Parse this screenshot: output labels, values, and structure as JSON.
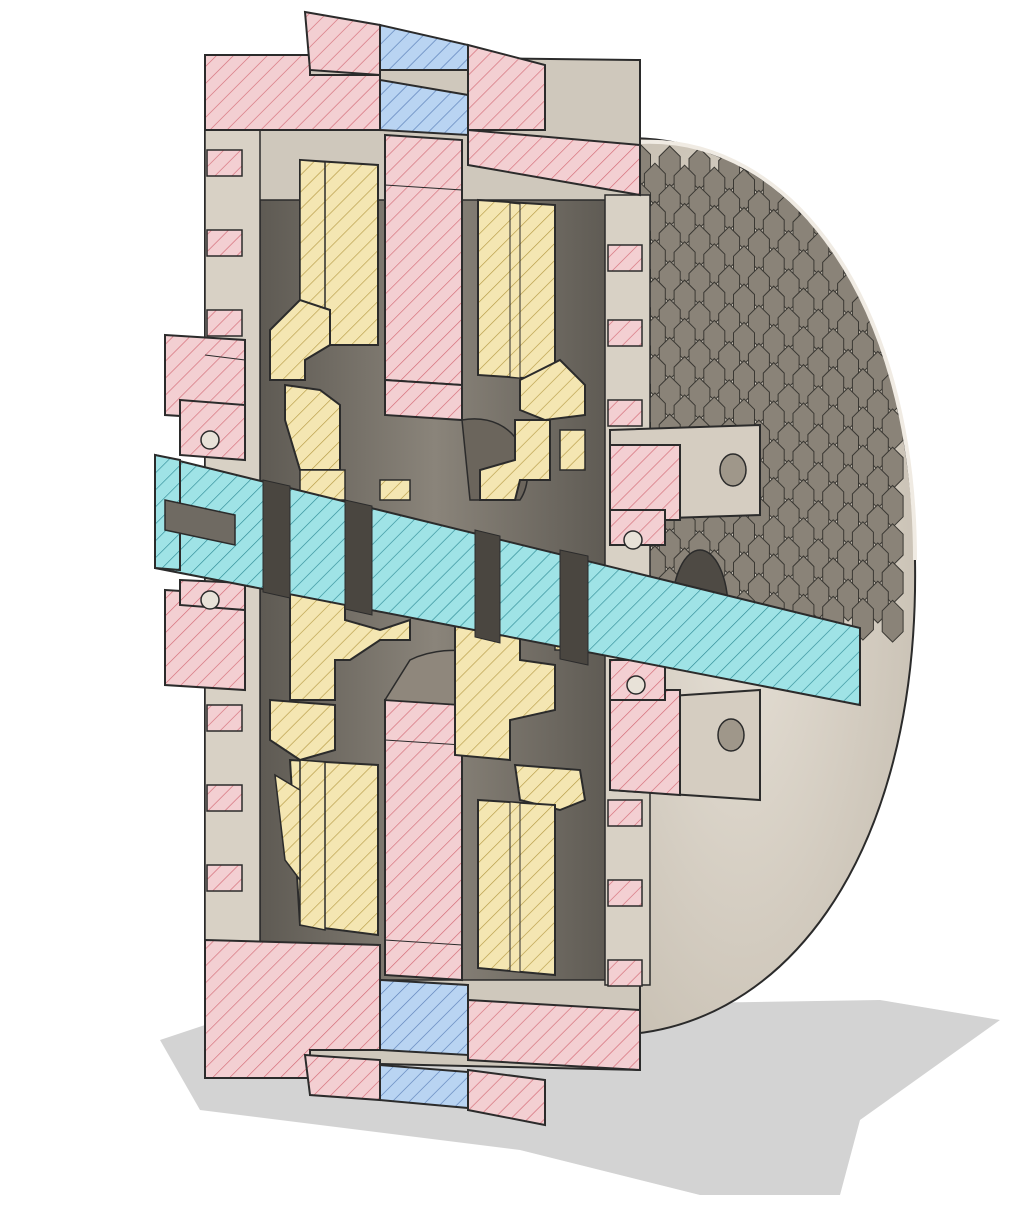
{
  "viewport": {
    "background": "#ffffff",
    "view": "section-view"
  },
  "model": {
    "colors": {
      "body_face": "#dcd6cc",
      "body_shadow": "#b7ae9f",
      "body_dark": "#8e8578",
      "cavity": "#6f6a62",
      "outline": "#2b2b2b",
      "hatch_pink": "#f3cfd2",
      "hatch_pink_line": "#d46a76",
      "hatch_yellow": "#f4e6b2",
      "hatch_yellow_line": "#b69b45",
      "hatch_blue": "#b9d4f2",
      "hatch_blue_line": "#5a7fb8",
      "hatch_cyan": "#9fe3e6",
      "hatch_cyan_line": "#2f8c96",
      "ground_shadow": "#cfcfcf"
    },
    "parts": [
      "outer-housing",
      "housing-ring-insert",
      "left-rotor-disc",
      "right-rotor-disc",
      "center-rotor",
      "shaft",
      "left-bearing",
      "right-bearing",
      "honeycomb-end-cap",
      "retaining-clips"
    ]
  }
}
